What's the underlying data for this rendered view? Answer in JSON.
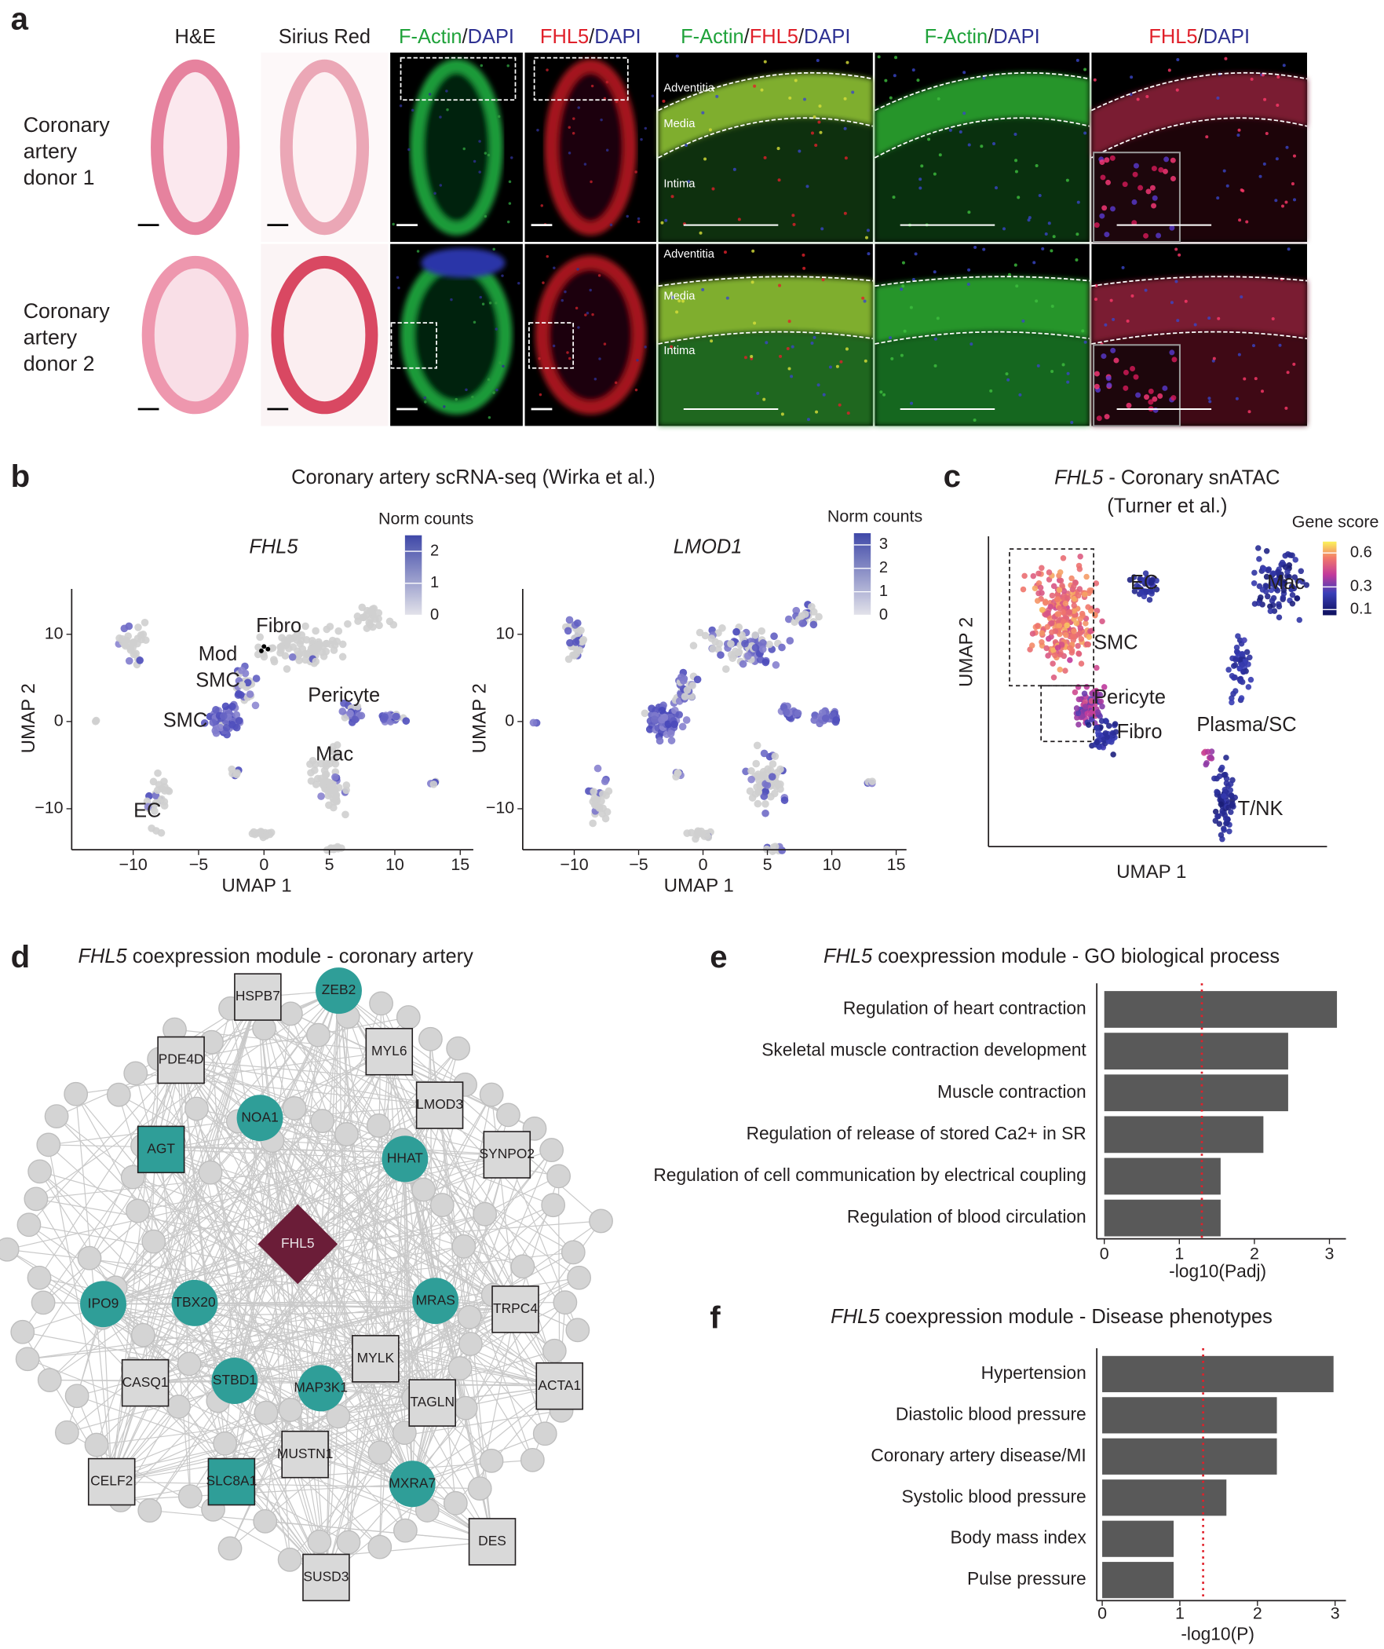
{
  "panel_labels": [
    "a",
    "b",
    "c",
    "d",
    "e",
    "f"
  ],
  "panel_a": {
    "column_headers": [
      [
        {
          "text": "H&E",
          "color": "#231f20"
        }
      ],
      [
        {
          "text": "Sirius Red",
          "color": "#231f20"
        }
      ],
      [
        {
          "text": "F-Actin",
          "color": "#1fa23a"
        },
        {
          "text": "/",
          "color": "#231f20"
        },
        {
          "text": "DAPI",
          "color": "#2e3192"
        }
      ],
      [
        {
          "text": "FHL5",
          "color": "#e0202a"
        },
        {
          "text": "/",
          "color": "#231f20"
        },
        {
          "text": "DAPI",
          "color": "#2e3192"
        }
      ],
      [
        {
          "text": "F-Actin",
          "color": "#1fa23a"
        },
        {
          "text": "/",
          "color": "#231f20"
        },
        {
          "text": "FHL5",
          "color": "#e0202a"
        },
        {
          "text": "/",
          "color": "#231f20"
        },
        {
          "text": "DAPI",
          "color": "#2e3192"
        }
      ],
      [
        {
          "text": "F-Actin",
          "color": "#1fa23a"
        },
        {
          "text": "/",
          "color": "#231f20"
        },
        {
          "text": "DAPI",
          "color": "#2e3192"
        }
      ],
      [
        {
          "text": "FHL5",
          "color": "#e0202a"
        },
        {
          "text": "/",
          "color": "#231f20"
        },
        {
          "text": "DAPI",
          "color": "#2e3192"
        }
      ]
    ],
    "row_labels": [
      [
        "Coronary",
        "artery",
        "donor 1"
      ],
      [
        "Coronary",
        "artery",
        "donor 2"
      ]
    ],
    "layer_labels": [
      "Adventitia",
      "Media",
      "Intima"
    ]
  },
  "panel_b": {
    "title": "Coronary artery scRNA-seq (Wirka et al.)",
    "plots": [
      {
        "gene": "FHL5",
        "colorbar_title": "Norm counts",
        "colorbar_lim": [
          0,
          2.5
        ],
        "colorbar_ticks": [
          0,
          1,
          2
        ],
        "xlabel": "UMAP 1",
        "ylabel": "UMAP 2",
        "xlim": [
          -14.7,
          16
        ],
        "ylim": [
          -14.7,
          15.2
        ],
        "xticks": [
          {
            "value": -10,
            "label": "−10"
          },
          {
            "value": -5,
            "label": "−5"
          },
          0,
          5,
          10,
          15
        ],
        "yticks": [
          {
            "value": -10,
            "label": "−10"
          },
          0,
          10
        ],
        "cluster_labels": [
          "Fibro",
          "Mod",
          "SMC",
          "SMC",
          "Pericyte",
          "Mac",
          "EC"
        ]
      },
      {
        "gene": "LMOD1",
        "colorbar_title": "Norm counts",
        "colorbar_lim": [
          0,
          3.5
        ],
        "colorbar_ticks": [
          0,
          1,
          2,
          3
        ],
        "xlabel": "UMAP 1",
        "ylabel": "UMAP 2",
        "xlim": [
          -14,
          15.8
        ],
        "ylim": [
          -14.7,
          15.2
        ],
        "xticks": [
          {
            "value": -10,
            "label": "−10"
          },
          {
            "value": -5,
            "label": "−5"
          },
          0,
          5,
          10,
          15
        ],
        "yticks": [
          {
            "value": -10,
            "label": "−10"
          },
          0,
          10
        ],
        "cluster_labels": []
      }
    ]
  },
  "panel_c": {
    "title_gene": "FHL5",
    "title": " - Coronary snATAC",
    "subtitle": "(Turner et al.)",
    "colorbar_title": "Gene score",
    "colorbar_lim": [
      0.05,
      0.7
    ],
    "colorbar_ticks": [
      0.1,
      0.3,
      0.6
    ],
    "xlabel": "UMAP 1",
    "ylabel": "UMAP 2",
    "cluster_labels": [
      "EC",
      "SMC",
      "Pericyte",
      "Fibro",
      "Mac",
      "Plasma/SC",
      "T/NK"
    ]
  },
  "panel_d": {
    "title_gene": "FHL5",
    "title": " coexpression module - coronary artery",
    "nodes": [
      {
        "label": "HSPB7",
        "shape": "square",
        "color": "#d9d9d9"
      },
      {
        "label": "ZEB2",
        "shape": "circle",
        "color": "#2f9e98"
      },
      {
        "label": "MYL6",
        "shape": "square",
        "color": "#d9d9d9"
      },
      {
        "label": "PDE4D",
        "shape": "square",
        "color": "#d9d9d9"
      },
      {
        "label": "LMOD3",
        "shape": "square",
        "color": "#d9d9d9"
      },
      {
        "label": "SYNPO2",
        "shape": "square",
        "color": "#d9d9d9"
      },
      {
        "label": "NOA1",
        "shape": "circle",
        "color": "#2f9e98"
      },
      {
        "label": "AGT",
        "shape": "square",
        "color": "#2f9e98"
      },
      {
        "label": "HHAT",
        "shape": "circle",
        "color": "#2f9e98"
      },
      {
        "label": "FHL5",
        "shape": "diamond",
        "color": "#6b1d38"
      },
      {
        "label": "TBX20",
        "shape": "circle",
        "color": "#2f9e98"
      },
      {
        "label": "IPO9",
        "shape": "circle",
        "color": "#2f9e98"
      },
      {
        "label": "MRAS",
        "shape": "circle",
        "color": "#2f9e98"
      },
      {
        "label": "TRPC4",
        "shape": "square",
        "color": "#d9d9d9"
      },
      {
        "label": "MYLK",
        "shape": "square",
        "color": "#d9d9d9"
      },
      {
        "label": "STBD1",
        "shape": "circle",
        "color": "#2f9e98"
      },
      {
        "label": "MAP3K1",
        "shape": "circle",
        "color": "#2f9e98"
      },
      {
        "label": "CASQ1",
        "shape": "square",
        "color": "#d9d9d9"
      },
      {
        "label": "ACTA1",
        "shape": "square",
        "color": "#d9d9d9"
      },
      {
        "label": "TAGLN",
        "shape": "square",
        "color": "#d9d9d9"
      },
      {
        "label": "MUSTN1",
        "shape": "square",
        "color": "#d9d9d9"
      },
      {
        "label": "CELF2",
        "shape": "square",
        "color": "#d9d9d9"
      },
      {
        "label": "SLC8A1",
        "shape": "square",
        "color": "#2f9e98"
      },
      {
        "label": "MXRA7",
        "shape": "circle",
        "color": "#2f9e98"
      },
      {
        "label": "DES",
        "shape": "square",
        "color": "#d9d9d9"
      },
      {
        "label": "SUSD3",
        "shape": "square",
        "color": "#d9d9d9"
      }
    ]
  },
  "chart_data": [
    {
      "type": "bar",
      "title_gene": "FHL5",
      "title": " coexpression module - GO biological process",
      "categories": [
        "Regulation of heart contraction",
        "Skeletal muscle contraction development",
        "Muscle contraction",
        "Regulation of release of stored Ca2+ in SR",
        "Regulation of cell communication by electrical coupling",
        "Regulation of blood circulation"
      ],
      "values": [
        3.1,
        2.45,
        2.45,
        2.12,
        1.55,
        1.55
      ],
      "color": "#595959",
      "xlabel": "-log10(Padj)",
      "xlim": [
        -0.1,
        3.22
      ],
      "xticks": [
        0,
        1,
        2,
        3
      ],
      "threshold": 1.3,
      "threshold_color": "#e0202a"
    },
    {
      "type": "bar",
      "title_gene": "FHL5",
      "title": " coexpression module - Disease phenotypes",
      "categories": [
        "Hypertension",
        "Diastolic blood pressure",
        "Coronary artery disease/MI",
        "Systolic blood pressure",
        "Body mass index",
        "Pulse pressure"
      ],
      "values": [
        2.98,
        2.25,
        2.25,
        1.6,
        0.92,
        0.92
      ],
      "color": "#595959",
      "xlabel": "-log10(P)",
      "xlim": [
        -0.07,
        3.14
      ],
      "xticks": [
        0,
        1,
        2,
        3
      ],
      "threshold": 1.3,
      "threshold_color": "#e0202a"
    }
  ]
}
